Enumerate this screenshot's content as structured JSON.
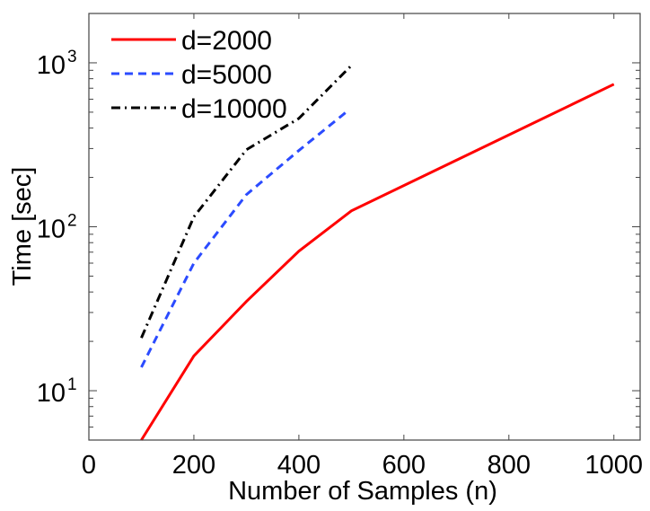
{
  "chart_data": {
    "type": "line",
    "title": "",
    "xlabel": "Number of Samples (n)",
    "ylabel": "Time [sec]",
    "xlim": [
      0,
      1050
    ],
    "ylim": [
      5,
      2000
    ],
    "yscale": "log",
    "grid": false,
    "legend_position": "top-left",
    "xticks": [
      0,
      200,
      400,
      600,
      800,
      1000
    ],
    "xtick_labels": [
      "0",
      "200",
      "400",
      "600",
      "800",
      "1000"
    ],
    "yticks": [
      10,
      100,
      1000
    ],
    "ytick_labels": [
      {
        "base": "10",
        "exp": "1"
      },
      {
        "base": "10",
        "exp": "2"
      },
      {
        "base": "10",
        "exp": "3"
      }
    ],
    "series": [
      {
        "name": "d=2000",
        "color": "#ff0000",
        "style": "solid",
        "x": [
          100,
          200,
          300,
          400,
          500,
          1000
        ],
        "y": [
          5,
          16.3,
          35,
          71,
          125,
          740
        ]
      },
      {
        "name": "d=5000",
        "color": "#2b4bff",
        "style": "dashed",
        "x": [
          100,
          200,
          300,
          400,
          490
        ],
        "y": [
          13.9,
          60,
          157,
          292,
          500
        ]
      },
      {
        "name": "d=10000",
        "color": "#000000",
        "style": "dashdot",
        "x": [
          100,
          200,
          300,
          400,
          500
        ],
        "y": [
          21,
          115,
          295,
          458,
          963
        ]
      }
    ]
  }
}
